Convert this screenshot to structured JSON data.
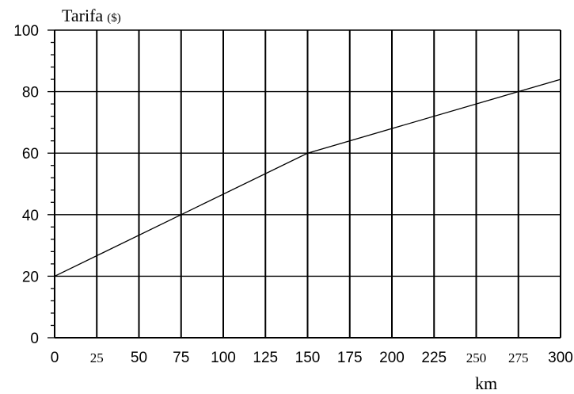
{
  "chart_data": {
    "type": "line",
    "ylabel": "Tarifa",
    "ylabel_unit": "($)",
    "xlabel": "km",
    "xlim": [
      0,
      300
    ],
    "ylim": [
      0,
      100
    ],
    "grid": true,
    "x_ticks": [
      {
        "value": 0,
        "label": "0",
        "style": "sans"
      },
      {
        "value": 25,
        "label": "25",
        "style": "serif"
      },
      {
        "value": 50,
        "label": "50",
        "style": "sans"
      },
      {
        "value": 75,
        "label": "75",
        "style": "sans"
      },
      {
        "value": 100,
        "label": "100",
        "style": "sans"
      },
      {
        "value": 125,
        "label": "125",
        "style": "sans"
      },
      {
        "value": 150,
        "label": "150",
        "style": "sans"
      },
      {
        "value": 175,
        "label": "175",
        "style": "sans"
      },
      {
        "value": 200,
        "label": "200",
        "style": "sans"
      },
      {
        "value": 225,
        "label": "225",
        "style": "sans"
      },
      {
        "value": 250,
        "label": "250",
        "style": "serif"
      },
      {
        "value": 275,
        "label": "275",
        "style": "serif"
      },
      {
        "value": 300,
        "label": "300",
        "style": "sans"
      }
    ],
    "y_ticks": [
      {
        "value": 0,
        "label": "0"
      },
      {
        "value": 20,
        "label": "20"
      },
      {
        "value": 40,
        "label": "40"
      },
      {
        "value": 60,
        "label": "60"
      },
      {
        "value": 80,
        "label": "80"
      },
      {
        "value": 100,
        "label": "100"
      }
    ],
    "y_minor_step": 4,
    "series": [
      {
        "x": [
          0,
          150,
          300
        ],
        "y": [
          20,
          60,
          84
        ]
      }
    ]
  }
}
